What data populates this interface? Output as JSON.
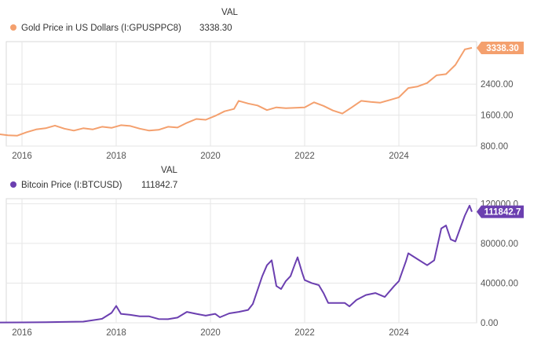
{
  "chart_data": [
    {
      "type": "line",
      "legend_header": "VAL",
      "series": [
        {
          "name": "Gold Price in US Dollars (I:GPUSPPC8)",
          "value_label": "3338.30",
          "color": "#f4a06e"
        }
      ],
      "x_ticks": [
        "2016",
        "2018",
        "2020",
        "2022",
        "2024"
      ],
      "y_ticks": [
        "800.00",
        "1600.00",
        "2400.00"
      ],
      "ylim": [
        800,
        3500
      ],
      "grid": true,
      "legend": "top-left",
      "points": [
        [
          2015.3,
          1090
        ],
        [
          2015.5,
          1110
        ],
        [
          2015.7,
          1080
        ],
        [
          2015.9,
          1070
        ],
        [
          2016.1,
          1160
        ],
        [
          2016.3,
          1230
        ],
        [
          2016.5,
          1260
        ],
        [
          2016.7,
          1330
        ],
        [
          2016.9,
          1250
        ],
        [
          2017.1,
          1200
        ],
        [
          2017.3,
          1260
        ],
        [
          2017.5,
          1230
        ],
        [
          2017.7,
          1300
        ],
        [
          2017.9,
          1270
        ],
        [
          2018.1,
          1340
        ],
        [
          2018.3,
          1320
        ],
        [
          2018.5,
          1250
        ],
        [
          2018.7,
          1200
        ],
        [
          2018.9,
          1220
        ],
        [
          2019.1,
          1300
        ],
        [
          2019.3,
          1280
        ],
        [
          2019.5,
          1400
        ],
        [
          2019.7,
          1500
        ],
        [
          2019.9,
          1480
        ],
        [
          2020.1,
          1580
        ],
        [
          2020.3,
          1700
        ],
        [
          2020.5,
          1760
        ],
        [
          2020.6,
          1970
        ],
        [
          2020.8,
          1900
        ],
        [
          2021.0,
          1850
        ],
        [
          2021.2,
          1730
        ],
        [
          2021.4,
          1800
        ],
        [
          2021.6,
          1780
        ],
        [
          2021.8,
          1790
        ],
        [
          2022.0,
          1800
        ],
        [
          2022.2,
          1930
        ],
        [
          2022.4,
          1840
        ],
        [
          2022.6,
          1720
        ],
        [
          2022.8,
          1640
        ],
        [
          2023.0,
          1800
        ],
        [
          2023.2,
          1970
        ],
        [
          2023.4,
          1940
        ],
        [
          2023.6,
          1920
        ],
        [
          2023.8,
          1990
        ],
        [
          2024.0,
          2060
        ],
        [
          2024.2,
          2300
        ],
        [
          2024.4,
          2340
        ],
        [
          2024.6,
          2430
        ],
        [
          2024.8,
          2630
        ],
        [
          2025.0,
          2660
        ],
        [
          2025.2,
          2900
        ],
        [
          2025.4,
          3300
        ],
        [
          2025.55,
          3340
        ]
      ]
    },
    {
      "type": "line",
      "legend_header": "VAL",
      "series": [
        {
          "name": "Bitcoin Price (I:BTCUSD)",
          "value_label": "111842.7",
          "color": "#6b3fb0"
        }
      ],
      "x_ticks": [
        "2016",
        "2018",
        "2020",
        "2022",
        "2024"
      ],
      "y_ticks": [
        "0.00",
        "40000.00",
        "80000.00",
        "120000.0"
      ],
      "ylim": [
        0,
        125000
      ],
      "grid": true,
      "legend": "top-left",
      "points": [
        [
          2015.0,
          300
        ],
        [
          2015.5,
          350
        ],
        [
          2016.0,
          430
        ],
        [
          2016.5,
          650
        ],
        [
          2017.0,
          1000
        ],
        [
          2017.3,
          1200
        ],
        [
          2017.5,
          2500
        ],
        [
          2017.7,
          4000
        ],
        [
          2017.9,
          10000
        ],
        [
          2018.0,
          17000
        ],
        [
          2018.1,
          9000
        ],
        [
          2018.3,
          8000
        ],
        [
          2018.5,
          6500
        ],
        [
          2018.7,
          6500
        ],
        [
          2018.9,
          3800
        ],
        [
          2019.1,
          3600
        ],
        [
          2019.3,
          5200
        ],
        [
          2019.5,
          11000
        ],
        [
          2019.7,
          9000
        ],
        [
          2019.9,
          7200
        ],
        [
          2020.1,
          9000
        ],
        [
          2020.2,
          5500
        ],
        [
          2020.4,
          9500
        ],
        [
          2020.6,
          11000
        ],
        [
          2020.8,
          13000
        ],
        [
          2020.9,
          19000
        ],
        [
          2021.0,
          33000
        ],
        [
          2021.1,
          47000
        ],
        [
          2021.2,
          58000
        ],
        [
          2021.3,
          63000
        ],
        [
          2021.4,
          37000
        ],
        [
          2021.5,
          34000
        ],
        [
          2021.6,
          42000
        ],
        [
          2021.7,
          47000
        ],
        [
          2021.8,
          60000
        ],
        [
          2021.85,
          66000
        ],
        [
          2021.95,
          50000
        ],
        [
          2022.0,
          43000
        ],
        [
          2022.15,
          40000
        ],
        [
          2022.3,
          38000
        ],
        [
          2022.4,
          30000
        ],
        [
          2022.5,
          20000
        ],
        [
          2022.7,
          20000
        ],
        [
          2022.85,
          20000
        ],
        [
          2022.95,
          16500
        ],
        [
          2023.1,
          23000
        ],
        [
          2023.3,
          28000
        ],
        [
          2023.5,
          30000
        ],
        [
          2023.7,
          26000
        ],
        [
          2023.9,
          37000
        ],
        [
          2024.0,
          42000
        ],
        [
          2024.15,
          62000
        ],
        [
          2024.2,
          70000
        ],
        [
          2024.4,
          64000
        ],
        [
          2024.6,
          58000
        ],
        [
          2024.75,
          63000
        ],
        [
          2024.9,
          95000
        ],
        [
          2025.0,
          98000
        ],
        [
          2025.1,
          84000
        ],
        [
          2025.2,
          82000
        ],
        [
          2025.3,
          95000
        ],
        [
          2025.4,
          108000
        ],
        [
          2025.5,
          118000
        ],
        [
          2025.55,
          111843
        ]
      ]
    }
  ]
}
